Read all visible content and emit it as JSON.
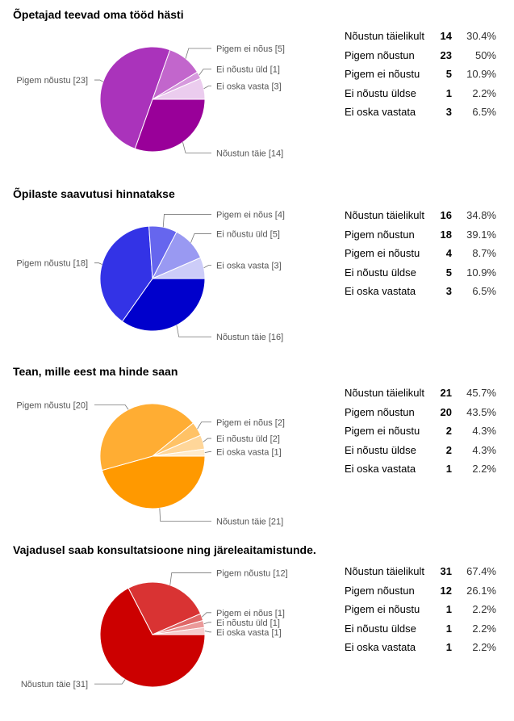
{
  "chart_data": [
    {
      "type": "pie",
      "title": "Õpetajad teevad oma tööd hästi",
      "slices": [
        {
          "legend": "Nõustun täielikult",
          "count": 14,
          "percent": "30.4%",
          "label": "Nõustun täie [14]",
          "color": "#990099"
        },
        {
          "legend": "Pigem nõustun",
          "count": 23,
          "percent": "50%",
          "label": "Pigem nõustu [23]",
          "color": "#AA33BB"
        },
        {
          "legend": "Pigem ei nõustu",
          "count": 5,
          "percent": "10.9%",
          "label": "Pigem ei nõus [5]",
          "color": "#C266CC"
        },
        {
          "legend": "Ei nõustu üldse",
          "count": 1,
          "percent": "2.2%",
          "label": "Ei nõustu üld [1]",
          "color": "#D699DD"
        },
        {
          "legend": "Ei oska vastata",
          "count": 3,
          "percent": "6.5%",
          "label": "Ei oska vasta [3]",
          "color": "#EBCCEE"
        }
      ]
    },
    {
      "type": "pie",
      "title": "Õpilaste saavutusi hinnatakse",
      "slices": [
        {
          "legend": "Nõustun täielikult",
          "count": 16,
          "percent": "34.8%",
          "label": "Nõustun täie [16]",
          "color": "#0000CC"
        },
        {
          "legend": "Pigem nõustun",
          "count": 18,
          "percent": "39.1%",
          "label": "Pigem nõustu [18]",
          "color": "#3333E6"
        },
        {
          "legend": "Pigem ei nõustu",
          "count": 4,
          "percent": "8.7%",
          "label": "Pigem ei nõus [4]",
          "color": "#6666EE"
        },
        {
          "legend": "Ei nõustu üldse",
          "count": 5,
          "percent": "10.9%",
          "label": "Ei nõustu üld [5]",
          "color": "#9999F2"
        },
        {
          "legend": "Ei oska vastata",
          "count": 3,
          "percent": "6.5%",
          "label": "Ei oska vasta [3]",
          "color": "#CCCCF8"
        }
      ]
    },
    {
      "type": "pie",
      "title": "Tean, mille eest ma hinde saan",
      "slices": [
        {
          "legend": "Nõustun täielikult",
          "count": 21,
          "percent": "45.7%",
          "label": "Nõustun täie [21]",
          "color": "#FF9900"
        },
        {
          "legend": "Pigem nõustun",
          "count": 20,
          "percent": "43.5%",
          "label": "Pigem nõustu [20]",
          "color": "#FFAD33"
        },
        {
          "legend": "Pigem ei nõustu",
          "count": 2,
          "percent": "4.3%",
          "label": "Pigem ei nõus [2]",
          "color": "#FFC266"
        },
        {
          "legend": "Ei nõustu üldse",
          "count": 2,
          "percent": "4.3%",
          "label": "Ei nõustu üld [2]",
          "color": "#FFD699"
        },
        {
          "legend": "Ei oska vastata",
          "count": 1,
          "percent": "2.2%",
          "label": "Ei oska vasta [1]",
          "color": "#FFEBCC"
        }
      ]
    },
    {
      "type": "pie",
      "title": "Vajadusel saab konsultatsioone ning järeleaitamistunde.",
      "slices": [
        {
          "legend": "Nõustun täielikult",
          "count": 31,
          "percent": "67.4%",
          "label": "Nõustun täie [31]",
          "color": "#CC0000"
        },
        {
          "legend": "Pigem nõustun",
          "count": 12,
          "percent": "26.1%",
          "label": "Pigem nõustu [12]",
          "color": "#D93333"
        },
        {
          "legend": "Pigem ei nõustu",
          "count": 1,
          "percent": "2.2%",
          "label": "Pigem ei nõus [1]",
          "color": "#E06666"
        },
        {
          "legend": "Ei nõustu üldse",
          "count": 1,
          "percent": "2.2%",
          "label": "Ei nõustu üld [1]",
          "color": "#EB9999"
        },
        {
          "legend": "Ei oska vastata",
          "count": 1,
          "percent": "2.2%",
          "label": "Ei oska vasta [1]",
          "color": "#F5CCCC"
        }
      ]
    }
  ]
}
